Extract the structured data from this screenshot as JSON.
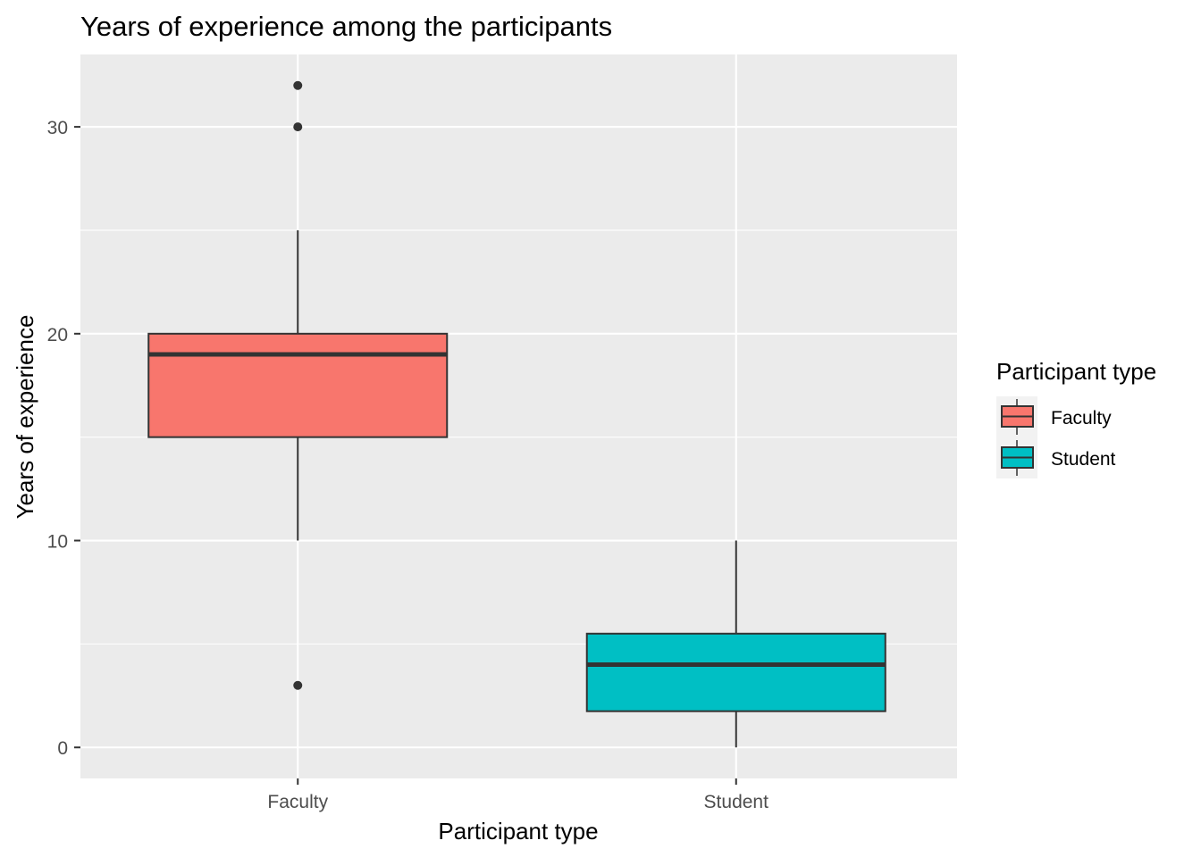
{
  "chart_data": {
    "type": "boxplot",
    "title": "Years of experience among the participants",
    "xlabel": "Participant type",
    "ylabel": "Years of experience",
    "ylim": [
      -1.5,
      33.5
    ],
    "yticks": [
      0,
      10,
      20,
      30
    ],
    "categories": [
      "Faculty",
      "Student"
    ],
    "series": [
      {
        "name": "Faculty",
        "color": "#F8766D",
        "whisker_low": 10,
        "q1": 15,
        "median": 19,
        "q3": 20,
        "whisker_high": 25,
        "outliers": [
          32,
          30,
          3
        ]
      },
      {
        "name": "Student",
        "color": "#00BFC4",
        "whisker_low": 0,
        "q1": 1.75,
        "median": 4,
        "q3": 5.5,
        "whisker_high": 10,
        "outliers": []
      }
    ],
    "legend": {
      "title": "Participant type",
      "position": "right",
      "entries": [
        "Faculty",
        "Student"
      ]
    },
    "colors": {
      "panel_bg": "#EBEBEB",
      "grid": "#FFFFFF",
      "box_line": "#333333"
    },
    "grid": true
  }
}
